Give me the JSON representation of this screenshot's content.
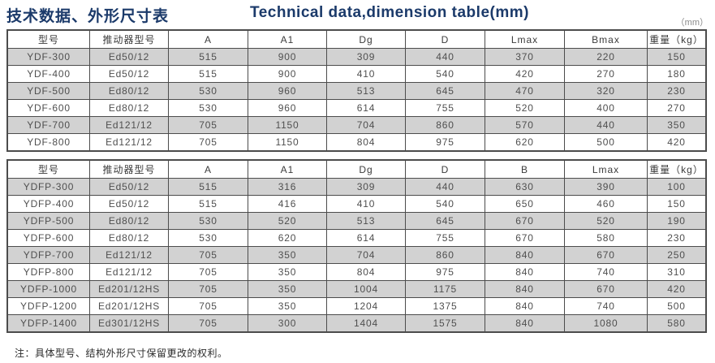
{
  "page": {
    "title_zh": "技术数据、外形尺寸表",
    "title_en": "Technical data,dimension table(mm)",
    "unit_label": "（mm）",
    "footnote": "注：具体型号、结构外形尺寸保留更改的权利。"
  },
  "colors": {
    "title_navy": "#1b3a6a",
    "stripe_gray": "#d2d2d2",
    "border_gray": "#4c4c4c",
    "cell_text": "#4f4f4f"
  },
  "table_ydf": {
    "headers": [
      "型号",
      "推动器型号",
      "A",
      "A1",
      "Dg",
      "D",
      "Lmax",
      "Bmax",
      "重量（kg）"
    ],
    "rows": [
      [
        "YDF-300",
        "Ed50/12",
        "515",
        "900",
        "309",
        "440",
        "370",
        "220",
        "150"
      ],
      [
        "YDF-400",
        "Ed50/12",
        "515",
        "900",
        "410",
        "540",
        "420",
        "270",
        "180"
      ],
      [
        "YDF-500",
        "Ed80/12",
        "530",
        "960",
        "513",
        "645",
        "470",
        "320",
        "230"
      ],
      [
        "YDF-600",
        "Ed80/12",
        "530",
        "960",
        "614",
        "755",
        "520",
        "400",
        "270"
      ],
      [
        "YDF-700",
        "Ed121/12",
        "705",
        "1150",
        "704",
        "860",
        "570",
        "440",
        "350"
      ],
      [
        "YDF-800",
        "Ed121/12",
        "705",
        "1150",
        "804",
        "975",
        "620",
        "500",
        "420"
      ]
    ]
  },
  "table_ydfp": {
    "headers": [
      "型号",
      "推动器型号",
      "A",
      "A1",
      "Dg",
      "D",
      "B",
      "Lmax",
      "重量（kg）"
    ],
    "rows": [
      [
        "YDFP-300",
        "Ed50/12",
        "515",
        "316",
        "309",
        "440",
        "630",
        "390",
        "100"
      ],
      [
        "YDFP-400",
        "Ed50/12",
        "515",
        "416",
        "410",
        "540",
        "650",
        "460",
        "150"
      ],
      [
        "YDFP-500",
        "Ed80/12",
        "530",
        "520",
        "513",
        "645",
        "670",
        "520",
        "190"
      ],
      [
        "YDFP-600",
        "Ed80/12",
        "530",
        "620",
        "614",
        "755",
        "670",
        "580",
        "230"
      ],
      [
        "YDFP-700",
        "Ed121/12",
        "705",
        "350",
        "704",
        "860",
        "840",
        "670",
        "250"
      ],
      [
        "YDFP-800",
        "Ed121/12",
        "705",
        "350",
        "804",
        "975",
        "840",
        "740",
        "310"
      ],
      [
        "YDFP-1000",
        "Ed201/12HS",
        "705",
        "350",
        "1004",
        "1175",
        "840",
        "670",
        "420"
      ],
      [
        "YDFP-1200",
        "Ed201/12HS",
        "705",
        "350",
        "1204",
        "1375",
        "840",
        "740",
        "500"
      ],
      [
        "YDFP-1400",
        "Ed301/12HS",
        "705",
        "300",
        "1404",
        "1575",
        "840",
        "1080",
        "580"
      ]
    ]
  }
}
